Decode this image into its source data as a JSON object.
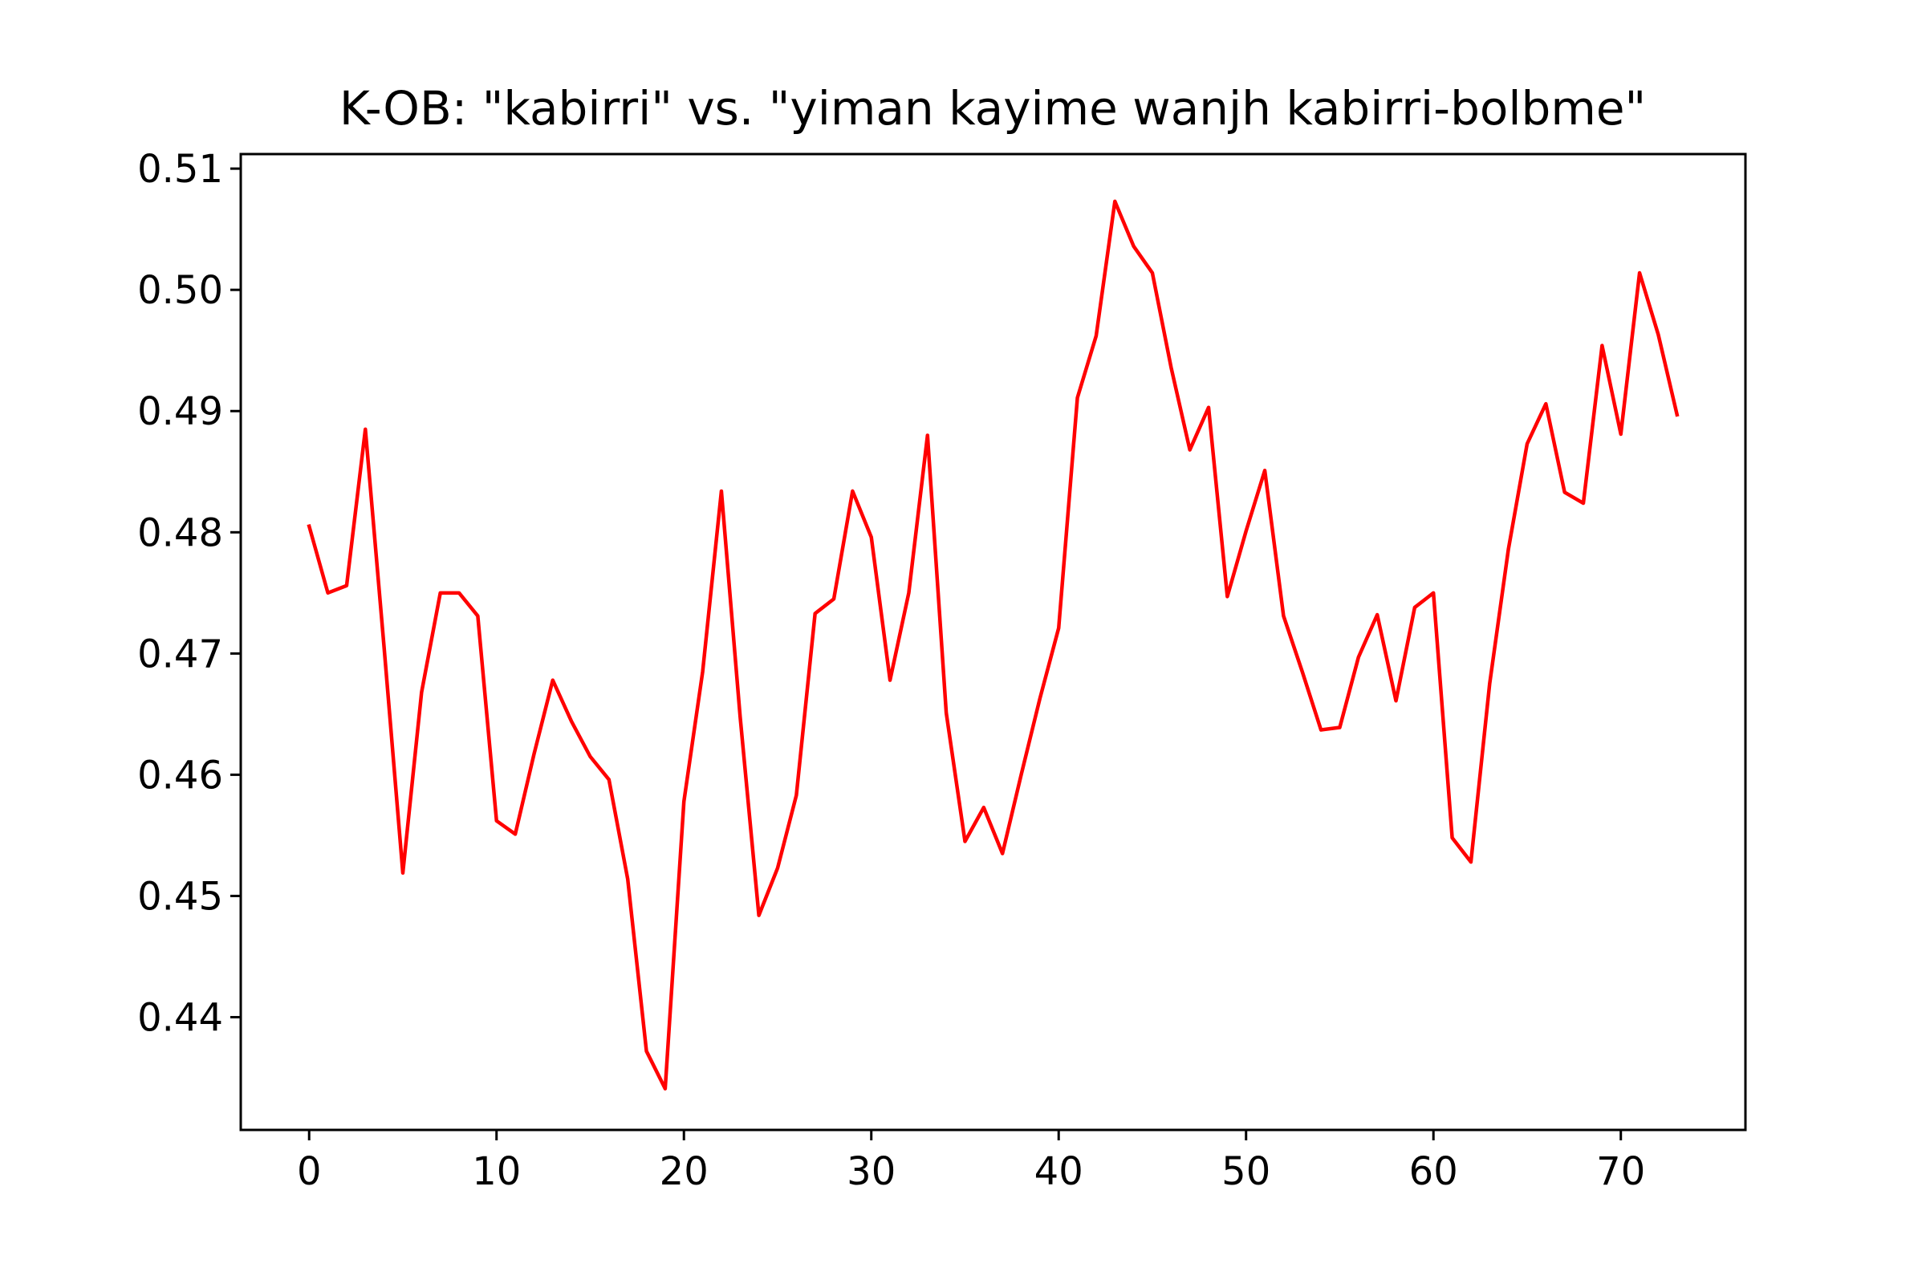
{
  "colors": {
    "series": "#ff0000",
    "axes": "#000000",
    "background": "#ffffff"
  },
  "chart_data": {
    "type": "line",
    "title": "K-OB: \"kabirri\" vs. \"yiman kayime wanjh kabirri-bolbme\"",
    "xlabel": "",
    "ylabel": "",
    "xlim": [
      -3.65,
      76.65
    ],
    "ylim": [
      0.4307,
      0.5112
    ],
    "grid": false,
    "legend": "none",
    "x_ticks": [
      0,
      10,
      20,
      30,
      40,
      50,
      60,
      70
    ],
    "x_tick_labels": [
      "0",
      "10",
      "20",
      "30",
      "40",
      "50",
      "60",
      "70"
    ],
    "y_ticks": [
      0.44,
      0.45,
      0.46,
      0.47,
      0.48,
      0.49,
      0.5,
      0.51
    ],
    "y_tick_labels": [
      "0.44",
      "0.45",
      "0.46",
      "0.47",
      "0.48",
      "0.49",
      "0.50",
      "0.51"
    ],
    "series": [
      {
        "x": [
          0,
          1,
          2,
          3,
          4,
          5,
          6,
          7,
          8,
          9,
          10,
          11,
          12,
          13,
          14,
          15,
          16,
          17,
          18,
          19,
          20,
          21,
          22,
          23,
          24,
          25,
          26,
          27,
          28,
          29,
          30,
          31,
          32,
          33,
          34,
          35,
          36,
          37,
          38,
          39,
          40,
          41,
          42,
          43,
          44,
          45,
          46,
          47,
          48,
          49,
          50,
          51,
          52,
          53,
          54,
          55,
          56,
          57,
          58,
          59,
          60,
          61,
          62,
          63,
          64,
          65,
          66,
          67,
          68,
          69,
          70,
          71,
          72,
          73
        ],
        "values": [
          0.4805,
          0.475,
          0.4756,
          0.4885,
          0.4705,
          0.4519,
          0.4668,
          0.475,
          0.475,
          0.4731,
          0.4562,
          0.4551,
          0.4617,
          0.4678,
          0.4644,
          0.4615,
          0.4596,
          0.4514,
          0.4372,
          0.4341,
          0.4578,
          0.4685,
          0.4834,
          0.4648,
          0.4484,
          0.4523,
          0.4583,
          0.4733,
          0.4745,
          0.4834,
          0.4796,
          0.4678,
          0.475,
          0.488,
          0.4651,
          0.4545,
          0.4573,
          0.4535,
          0.46,
          0.4663,
          0.4721,
          0.4911,
          0.4962,
          0.5073,
          0.5036,
          0.5014,
          0.4936,
          0.4868,
          0.4903,
          0.4747,
          0.4801,
          0.4851,
          0.4731,
          0.4685,
          0.4637,
          0.4639,
          0.4697,
          0.4732,
          0.4661,
          0.4738,
          0.475,
          0.4548,
          0.4528,
          0.4675,
          0.4786,
          0.4873,
          0.4906,
          0.4833,
          0.4824,
          0.4954,
          0.4881,
          0.5014,
          0.4963,
          0.4897
        ]
      }
    ]
  }
}
